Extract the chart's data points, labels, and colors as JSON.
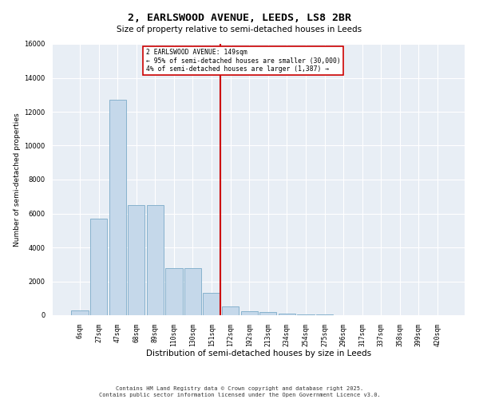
{
  "title_line1": "2, EARLSWOOD AVENUE, LEEDS, LS8 2BR",
  "title_line2": "Size of property relative to semi-detached houses in Leeds",
  "xlabel": "Distribution of semi-detached houses by size in Leeds",
  "ylabel": "Number of semi-detached properties",
  "footer_line1": "Contains HM Land Registry data © Crown copyright and database right 2025.",
  "footer_line2": "Contains public sector information licensed under the Open Government Licence v3.0.",
  "annotation_line1": "2 EARLSWOOD AVENUE: 149sqm",
  "annotation_line2": "← 95% of semi-detached houses are smaller (30,000)",
  "annotation_line3": "4% of semi-detached houses are larger (1,387) →",
  "categories": [
    "6sqm",
    "27sqm",
    "47sqm",
    "68sqm",
    "89sqm",
    "110sqm",
    "130sqm",
    "151sqm",
    "172sqm",
    "192sqm",
    "213sqm",
    "234sqm",
    "254sqm",
    "275sqm",
    "296sqm",
    "317sqm",
    "337sqm",
    "358sqm",
    "399sqm",
    "420sqm"
  ],
  "values": [
    300,
    5700,
    12700,
    6500,
    6500,
    2800,
    2800,
    1300,
    500,
    250,
    200,
    100,
    50,
    30,
    10,
    5,
    5,
    2,
    2,
    1
  ],
  "bar_color": "#c5d8ea",
  "bar_edge_color": "#7aaac8",
  "vline_color": "#cc0000",
  "background_color": "#e8eef5",
  "ylim": [
    0,
    16000
  ],
  "yticks": [
    0,
    2000,
    4000,
    6000,
    8000,
    10000,
    12000,
    14000,
    16000
  ],
  "marker_bin_idx": 7
}
